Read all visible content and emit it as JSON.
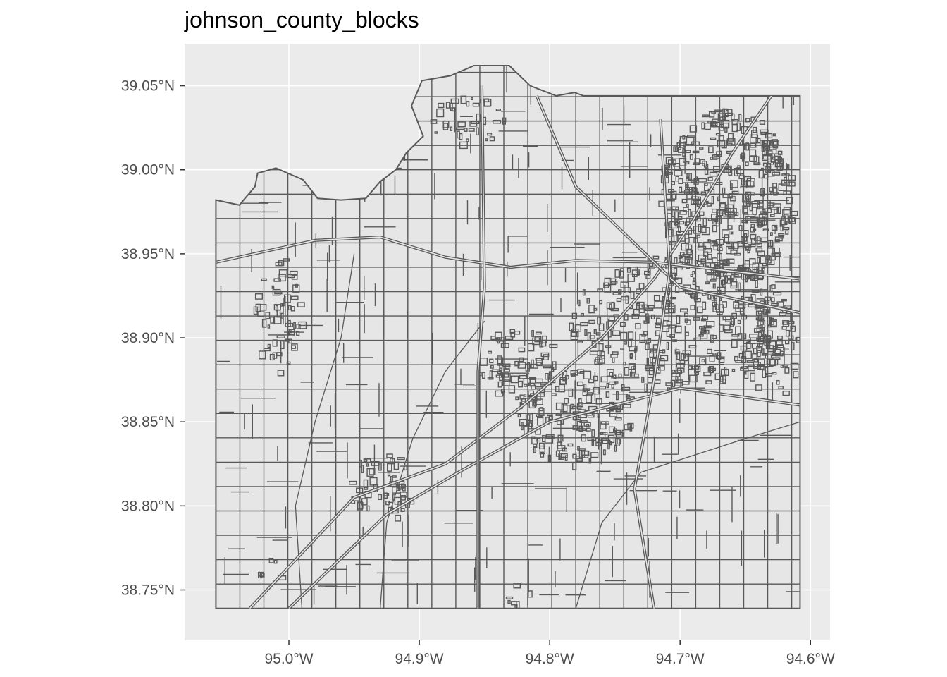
{
  "title": "johnson_county_blocks",
  "colors": {
    "panel": "#ebebeb",
    "grid": "#ffffff",
    "boundary": "#595959",
    "fill": "#e6e6e6",
    "tick_text": "#4d4d4d"
  },
  "chart_data": {
    "type": "map",
    "title": "johnson_county_blocks",
    "xlim": [
      -95.08,
      -94.585
    ],
    "ylim": [
      38.72,
      39.075
    ],
    "x_ticks": [
      {
        "value": -95.0,
        "label": "95.0°W"
      },
      {
        "value": -94.9,
        "label": "94.9°W"
      },
      {
        "value": -94.8,
        "label": "94.8°W"
      },
      {
        "value": -94.7,
        "label": "94.7°W"
      },
      {
        "value": -94.6,
        "label": "94.6°W"
      }
    ],
    "y_ticks": [
      {
        "value": 39.05,
        "label": "39.05°N"
      },
      {
        "value": 39.0,
        "label": "39.00°N"
      },
      {
        "value": 38.95,
        "label": "38.95°N"
      },
      {
        "value": 38.9,
        "label": "38.90°N"
      },
      {
        "value": 38.85,
        "label": "38.85°N"
      },
      {
        "value": 38.8,
        "label": "38.80°N"
      },
      {
        "value": 38.75,
        "label": "38.75°N"
      }
    ],
    "grid": true,
    "county_outline": [
      [
        -95.056,
        38.739
      ],
      [
        -94.608,
        38.739
      ],
      [
        -94.608,
        39.044
      ],
      [
        -94.774,
        39.044
      ],
      [
        -94.781,
        39.046
      ],
      [
        -94.795,
        39.044
      ],
      [
        -94.815,
        39.05
      ],
      [
        -94.831,
        39.062
      ],
      [
        -94.858,
        39.062
      ],
      [
        -94.876,
        39.056
      ],
      [
        -94.898,
        39.053
      ],
      [
        -94.906,
        39.038
      ],
      [
        -94.897,
        39.02
      ],
      [
        -94.91,
        39.01
      ],
      [
        -94.918,
        39.0
      ],
      [
        -94.93,
        38.993
      ],
      [
        -94.941,
        38.983
      ],
      [
        -94.96,
        38.982
      ],
      [
        -94.978,
        38.983
      ],
      [
        -94.989,
        38.994
      ],
      [
        -95.01,
        39.001
      ],
      [
        -95.024,
        38.998
      ],
      [
        -95.026,
        38.99
      ],
      [
        -95.038,
        38.979
      ],
      [
        -95.056,
        38.982
      ],
      [
        -95.056,
        38.739
      ]
    ],
    "highways": [
      [
        [
          -95.03,
          38.739
        ],
        [
          -94.95,
          38.805
        ],
        [
          -94.88,
          38.825
        ],
        [
          -94.82,
          38.86
        ],
        [
          -94.76,
          38.9
        ],
        [
          -94.72,
          38.935
        ],
        [
          -94.69,
          38.97
        ],
        [
          -94.66,
          39.01
        ],
        [
          -94.63,
          39.044
        ]
      ],
      [
        [
          -95.0,
          38.739
        ],
        [
          -94.925,
          38.795
        ],
        [
          -94.87,
          38.82
        ],
        [
          -94.8,
          38.85
        ],
        [
          -94.7,
          38.87
        ],
        [
          -94.608,
          38.86
        ]
      ],
      [
        [
          -95.056,
          38.945
        ],
        [
          -94.98,
          38.958
        ],
        [
          -94.93,
          38.96
        ],
        [
          -94.88,
          38.948
        ],
        [
          -94.83,
          38.942
        ],
        [
          -94.78,
          38.946
        ],
        [
          -94.72,
          38.945
        ],
        [
          -94.608,
          38.935
        ]
      ],
      [
        [
          -94.855,
          38.739
        ],
        [
          -94.855,
          38.88
        ],
        [
          -94.85,
          38.93
        ],
        [
          -94.852,
          39.05
        ]
      ],
      [
        [
          -94.608,
          38.915
        ],
        [
          -94.7,
          38.93
        ],
        [
          -94.78,
          38.99
        ],
        [
          -94.81,
          39.044
        ]
      ],
      [
        [
          -94.72,
          38.739
        ],
        [
          -94.735,
          38.81
        ],
        [
          -94.72,
          38.875
        ],
        [
          -94.708,
          38.94
        ],
        [
          -94.715,
          39.03
        ]
      ]
    ],
    "streams": [
      [
        [
          -94.99,
          38.739
        ],
        [
          -94.995,
          38.8
        ],
        [
          -94.98,
          38.85
        ],
        [
          -94.96,
          38.9
        ],
        [
          -94.95,
          38.95
        ]
      ],
      [
        [
          -94.93,
          38.739
        ],
        [
          -94.925,
          38.79
        ],
        [
          -94.905,
          38.84
        ],
        [
          -94.88,
          38.88
        ],
        [
          -94.85,
          38.91
        ]
      ],
      [
        [
          -94.78,
          38.739
        ],
        [
          -94.76,
          38.79
        ],
        [
          -94.73,
          38.82
        ],
        [
          -94.69,
          38.83
        ],
        [
          -94.65,
          38.84
        ],
        [
          -94.608,
          38.85
        ]
      ]
    ],
    "urban_clusters": [
      {
        "lon": -94.665,
        "lat": 38.985,
        "rx": 0.052,
        "ry": 0.052,
        "density": 14
      },
      {
        "lon": -94.7,
        "lat": 38.91,
        "rx": 0.085,
        "ry": 0.04,
        "density": 10
      },
      {
        "lon": -94.78,
        "lat": 38.855,
        "rx": 0.045,
        "ry": 0.03,
        "density": 11
      },
      {
        "lon": -94.825,
        "lat": 38.885,
        "rx": 0.03,
        "ry": 0.022,
        "density": 10
      },
      {
        "lon": -94.93,
        "lat": 38.812,
        "rx": 0.025,
        "ry": 0.02,
        "density": 10
      },
      {
        "lon": -95.01,
        "lat": 38.915,
        "rx": 0.018,
        "ry": 0.035,
        "density": 8
      },
      {
        "lon": -94.865,
        "lat": 39.03,
        "rx": 0.03,
        "ry": 0.014,
        "density": 8
      },
      {
        "lon": -94.63,
        "lat": 38.895,
        "rx": 0.02,
        "ry": 0.03,
        "density": 8
      },
      {
        "lon": -95.015,
        "lat": 38.763,
        "rx": 0.01,
        "ry": 0.008,
        "density": 6
      },
      {
        "lon": -94.825,
        "lat": 38.75,
        "rx": 0.01,
        "ry": 0.01,
        "density": 6
      }
    ]
  }
}
